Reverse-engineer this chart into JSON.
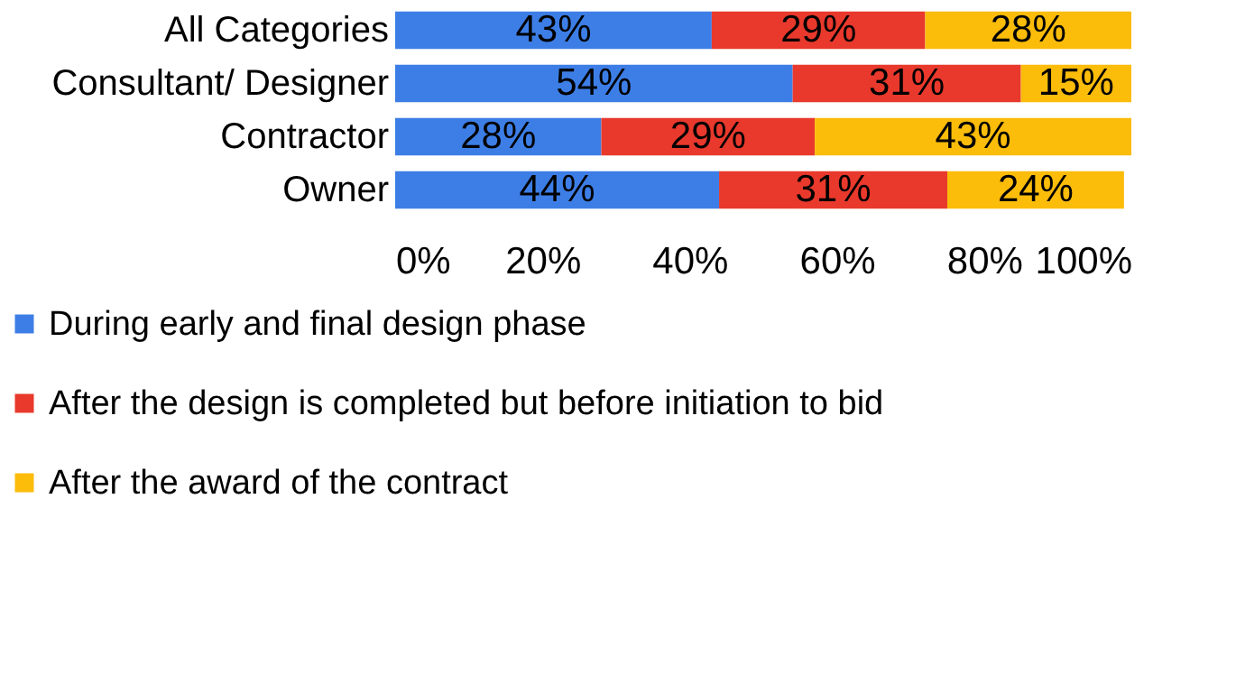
{
  "chart_data": {
    "type": "bar",
    "orientation": "horizontal",
    "stacked": true,
    "categories": [
      "All Categories",
      "Consultant/ Designer",
      "Contractor",
      "Owner"
    ],
    "series": [
      {
        "name": "During early and final design phase",
        "color": "#3d7ee6",
        "values": [
          43,
          54,
          28,
          44
        ],
        "value_labels": [
          "43%",
          "54%",
          "28%",
          "44%"
        ]
      },
      {
        "name": "After the design is completed but before initiation to bid",
        "color": "#e8392c",
        "values": [
          29,
          31,
          29,
          31
        ],
        "value_labels": [
          "29%",
          "31%",
          "29%",
          "31%"
        ]
      },
      {
        "name": "After the award of the contract",
        "color": "#fbbc0a",
        "values": [
          28,
          15,
          43,
          24
        ],
        "value_labels": [
          "28%",
          "15%",
          "43%",
          "24%"
        ]
      }
    ],
    "xlim": [
      0,
      100
    ],
    "xticks": [
      {
        "value": 0,
        "label": "0%"
      },
      {
        "value": 20,
        "label": "20%"
      },
      {
        "value": 40,
        "label": "40%"
      },
      {
        "value": 60,
        "label": "60%"
      },
      {
        "value": 80,
        "label": "80%"
      },
      {
        "value": 100,
        "label": "100%"
      }
    ],
    "legend": "bottom"
  }
}
